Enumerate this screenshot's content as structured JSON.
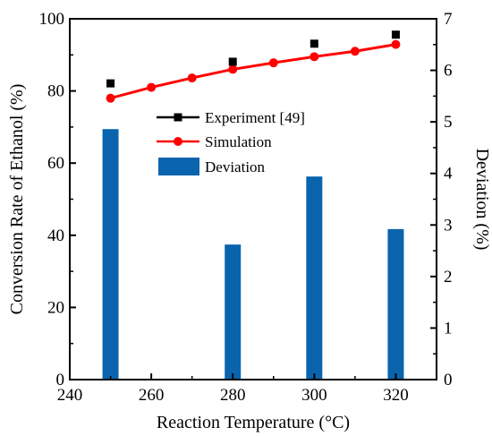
{
  "chart_data": {
    "type": "bar+line",
    "x_axis": {
      "label": "Reaction Temperature (°C)",
      "range": [
        240,
        330
      ],
      "ticks": [
        240,
        260,
        280,
        300,
        320
      ]
    },
    "y_left_axis": {
      "label": "Conversion Rate of Ethanol (%)",
      "range": [
        0,
        100
      ],
      "ticks": [
        0,
        20,
        40,
        60,
        80,
        100
      ]
    },
    "y_right_axis": {
      "label": "Deviation (%)",
      "range": [
        0,
        7
      ],
      "ticks": [
        0,
        1,
        2,
        3,
        4,
        5,
        6,
        7
      ]
    },
    "series": [
      {
        "name": "Experiment [49]",
        "kind": "scatter",
        "axis": "left",
        "marker": "square",
        "color": "#000000",
        "x": [
          250,
          280,
          300,
          320
        ],
        "y": [
          82.1,
          88.1,
          93.1,
          95.6
        ]
      },
      {
        "name": "Simulation",
        "kind": "line",
        "axis": "left",
        "marker": "circle",
        "color": "#ff0000",
        "x": [
          250,
          260,
          270,
          280,
          290,
          300,
          310,
          320
        ],
        "y": [
          78.0,
          81.0,
          83.6,
          86.0,
          87.8,
          89.5,
          91.0,
          92.9
        ]
      },
      {
        "name": "Deviation",
        "kind": "bar",
        "axis": "right",
        "color": "#0a64ad",
        "x": [
          250,
          280,
          300,
          320
        ],
        "y": [
          4.86,
          2.62,
          3.94,
          2.92
        ]
      }
    ],
    "legend": {
      "position": "upper-center",
      "entries": [
        "Experiment [49]",
        "Simulation",
        "Deviation"
      ]
    },
    "grid": false
  }
}
